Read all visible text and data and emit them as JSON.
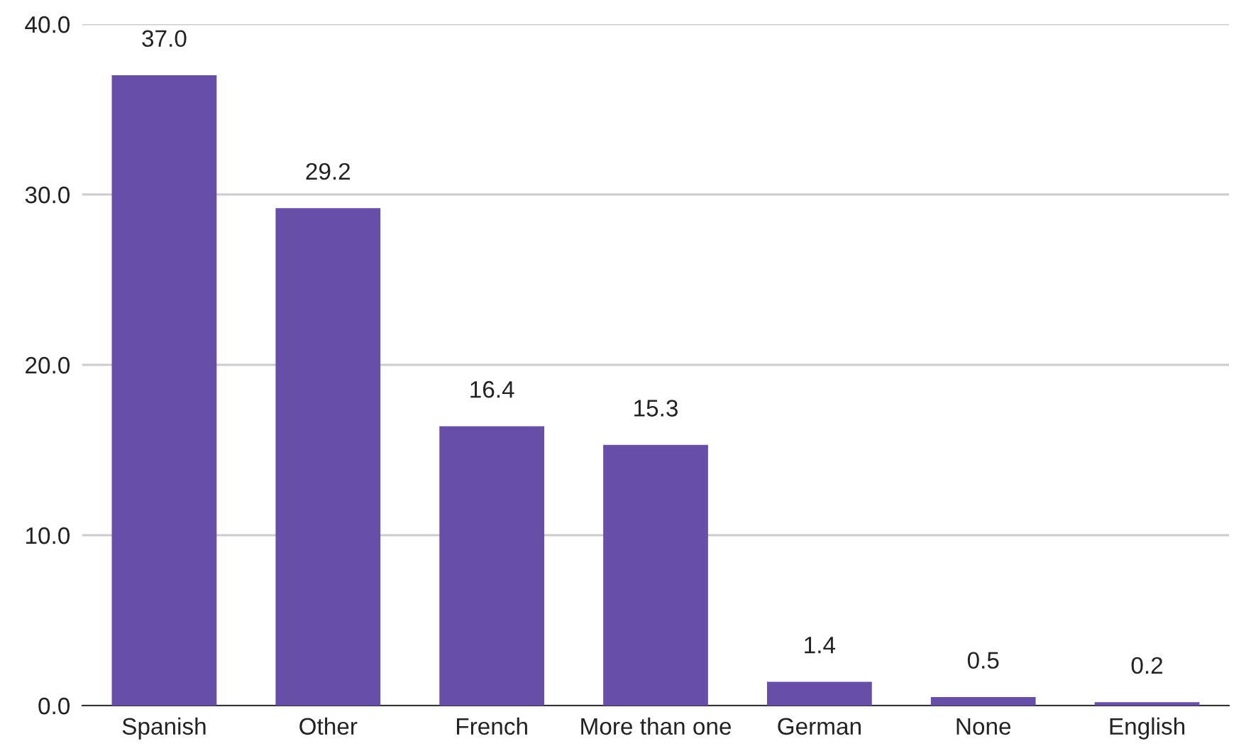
{
  "chart_data": {
    "type": "bar",
    "categories": [
      "Spanish",
      "Other",
      "French",
      "More than one",
      "German",
      "None",
      "English"
    ],
    "values": [
      37.0,
      29.2,
      16.4,
      15.3,
      1.4,
      0.5,
      0.2
    ],
    "value_labels": [
      "37.0",
      "29.2",
      "16.4",
      "15.3",
      "1.4",
      "0.5",
      "0.2"
    ],
    "color": "#674ea7",
    "ylim": [
      0,
      40
    ],
    "yticks": [
      {
        "value": 0,
        "label": "0.0"
      },
      {
        "value": 10,
        "label": "10.0"
      },
      {
        "value": 20,
        "label": "20.0"
      },
      {
        "value": 30,
        "label": "30.0"
      },
      {
        "value": 40,
        "label": "40.0"
      }
    ],
    "grid": "y",
    "legend": false
  }
}
